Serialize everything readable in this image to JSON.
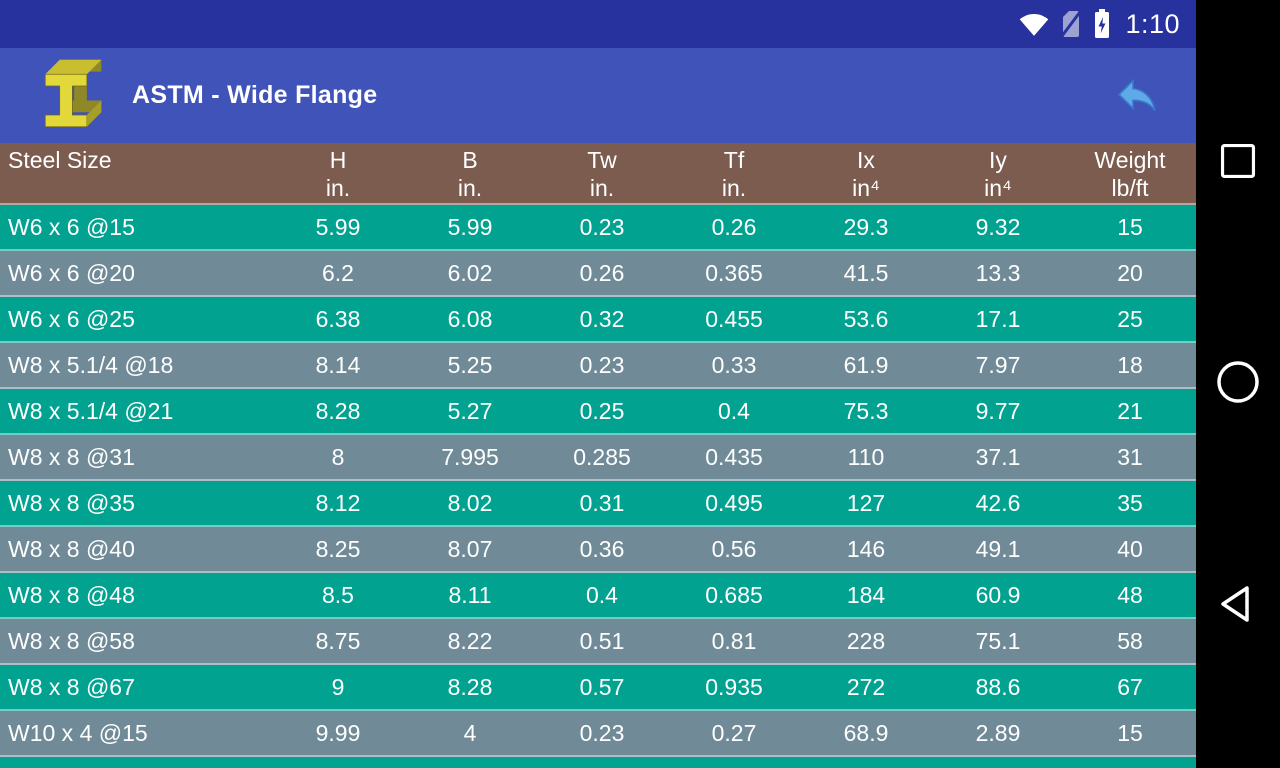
{
  "status_bar": {
    "time": "1:10",
    "icons": [
      {
        "name": "wifi-icon"
      },
      {
        "name": "no-sim-icon"
      },
      {
        "name": "battery-charging-icon"
      }
    ]
  },
  "app_bar": {
    "title": "ASTM - Wide Flange",
    "app_icon": "steel-ibeam-icon",
    "back_icon": "back-arrow-icon"
  },
  "table": {
    "headers": [
      {
        "key": "steel_size",
        "label": "Steel Size",
        "unit": ""
      },
      {
        "key": "h",
        "label": "H",
        "unit": "in."
      },
      {
        "key": "b",
        "label": "B",
        "unit": "in."
      },
      {
        "key": "tw",
        "label": "Tw",
        "unit": "in."
      },
      {
        "key": "tf",
        "label": "Tf",
        "unit": "in."
      },
      {
        "key": "ix",
        "label": "Ix",
        "unit": "in⁴"
      },
      {
        "key": "iy",
        "label": "Iy",
        "unit": "in⁴"
      },
      {
        "key": "weight",
        "label": "Weight",
        "unit": "lb/ft"
      }
    ],
    "rows": [
      [
        "W6 x 6 @15",
        "5.99",
        "5.99",
        "0.23",
        "0.26",
        "29.3",
        "9.32",
        "15"
      ],
      [
        "W6 x 6 @20",
        "6.2",
        "6.02",
        "0.26",
        "0.365",
        "41.5",
        "13.3",
        "20"
      ],
      [
        "W6 x 6 @25",
        "6.38",
        "6.08",
        "0.32",
        "0.455",
        "53.6",
        "17.1",
        "25"
      ],
      [
        "W8 x 5.1/4 @18",
        "8.14",
        "5.25",
        "0.23",
        "0.33",
        "61.9",
        "7.97",
        "18"
      ],
      [
        "W8 x 5.1/4 @21",
        "8.28",
        "5.27",
        "0.25",
        "0.4",
        "75.3",
        "9.77",
        "21"
      ],
      [
        "W8 x 8 @31",
        "8",
        "7.995",
        "0.285",
        "0.435",
        "110",
        "37.1",
        "31"
      ],
      [
        "W8 x 8 @35",
        "8.12",
        "8.02",
        "0.31",
        "0.495",
        "127",
        "42.6",
        "35"
      ],
      [
        "W8 x 8 @40",
        "8.25",
        "8.07",
        "0.36",
        "0.56",
        "146",
        "49.1",
        "40"
      ],
      [
        "W8 x 8 @48",
        "8.5",
        "8.11",
        "0.4",
        "0.685",
        "184",
        "60.9",
        "48"
      ],
      [
        "W8 x 8 @58",
        "8.75",
        "8.22",
        "0.51",
        "0.81",
        "228",
        "75.1",
        "58"
      ],
      [
        "W8 x 8 @67",
        "9",
        "8.28",
        "0.57",
        "0.935",
        "272",
        "88.6",
        "67"
      ],
      [
        "W10 x 4 @15",
        "9.99",
        "4",
        "0.23",
        "0.27",
        "68.9",
        "2.89",
        "15"
      ]
    ]
  },
  "nav_bar": {
    "buttons": [
      {
        "name": "recents-button",
        "icon": "square-icon"
      },
      {
        "name": "home-button",
        "icon": "circle-icon"
      },
      {
        "name": "back-button",
        "icon": "triangle-icon"
      }
    ]
  },
  "colors": {
    "status_bar": "#27329E",
    "app_bar": "#4053B9",
    "header_row": "#7D5C50",
    "row_teal": "#02A291",
    "row_slate": "#708B97",
    "nav_bar": "#000000",
    "accent_arrow": "#5EA9E8",
    "icon_yellow": "#E3D83A"
  }
}
